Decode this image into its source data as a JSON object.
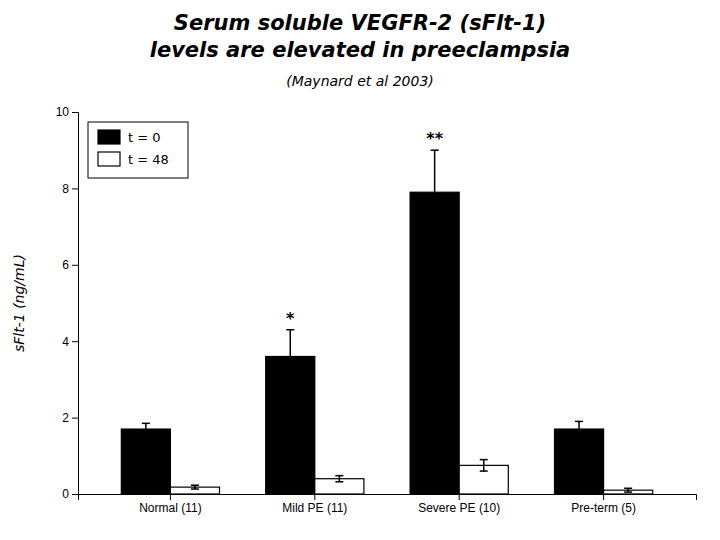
{
  "chart_data": {
    "type": "bar",
    "title": [
      "Serum soluble VEGFR-2 (sFlt-1)",
      "levels are elevated in preeclampsia"
    ],
    "subtitle": "(Maynard et al 2003)",
    "ylabel": "sFlt-1 (ng/mL)",
    "categories": [
      "Normal (11)",
      "Mild PE (11)",
      "Severe PE (10)",
      "Pre-term (5)"
    ],
    "series": [
      {
        "name": "t = 0",
        "color": "#000000",
        "values": [
          1.7,
          3.6,
          7.9,
          1.7
        ],
        "errors": [
          0.15,
          0.7,
          1.1,
          0.2
        ],
        "annotations": [
          null,
          "*",
          "**",
          null
        ]
      },
      {
        "name": "t = 48",
        "color": "#ffffff",
        "values": [
          0.18,
          0.4,
          0.75,
          0.1
        ],
        "errors": [
          0.05,
          0.08,
          0.15,
          0.05
        ]
      }
    ],
    "ylim": [
      0,
      10
    ],
    "yticks": [
      0,
      2,
      4,
      6,
      8,
      10
    ],
    "grid": false,
    "legend": "upper left"
  }
}
